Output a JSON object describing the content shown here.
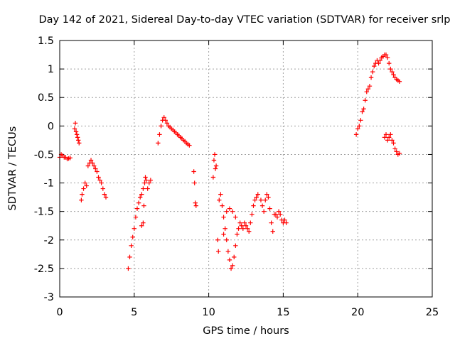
{
  "chart_data": {
    "type": "scatter",
    "title": "Day 142 of 2021, Sidereal Day-to-day VTEC variation (SDTVAR) for receiver srlp",
    "xlabel": "GPS time / hours",
    "ylabel": "SDTVAR / TECUs",
    "xlim": [
      0,
      25
    ],
    "ylim": [
      -3,
      1.5
    ],
    "xticks": [
      0,
      5,
      10,
      15,
      20,
      25
    ],
    "xtick_labels": [
      "0",
      "5",
      "10",
      "15",
      "20",
      "25"
    ],
    "yticks": [
      -3,
      -2.5,
      -2,
      -1.5,
      -1,
      -0.5,
      0,
      0.5,
      1,
      1.5
    ],
    "ytick_labels": [
      "-3",
      "-2.5",
      "-2",
      "-1.5",
      "-1",
      "-0.5",
      "0",
      "0.5",
      "1",
      "1.5"
    ],
    "grid": true,
    "marker": "+",
    "marker_color": "#ff0000",
    "series": [
      {
        "name": "SDTVAR",
        "points": [
          [
            0.0,
            -0.55
          ],
          [
            0.1,
            -0.5
          ],
          [
            0.2,
            -0.52
          ],
          [
            0.3,
            -0.55
          ],
          [
            0.4,
            -0.55
          ],
          [
            0.5,
            -0.58
          ],
          [
            0.6,
            -0.57
          ],
          [
            0.7,
            -0.56
          ],
          [
            1.0,
            -0.05
          ],
          [
            1.05,
            0.05
          ],
          [
            1.1,
            -0.1
          ],
          [
            1.15,
            -0.15
          ],
          [
            1.2,
            -0.2
          ],
          [
            1.25,
            -0.25
          ],
          [
            1.3,
            -0.3
          ],
          [
            1.45,
            -1.3
          ],
          [
            1.5,
            -1.2
          ],
          [
            1.6,
            -1.1
          ],
          [
            1.7,
            -1.0
          ],
          [
            1.8,
            -1.05
          ],
          [
            1.9,
            -0.7
          ],
          [
            2.0,
            -0.65
          ],
          [
            2.1,
            -0.6
          ],
          [
            2.2,
            -0.65
          ],
          [
            2.3,
            -0.7
          ],
          [
            2.4,
            -0.75
          ],
          [
            2.5,
            -0.8
          ],
          [
            2.6,
            -0.9
          ],
          [
            2.7,
            -0.95
          ],
          [
            2.8,
            -1.0
          ],
          [
            2.9,
            -1.1
          ],
          [
            3.0,
            -1.2
          ],
          [
            3.1,
            -1.25
          ],
          [
            4.6,
            -2.5
          ],
          [
            4.7,
            -2.3
          ],
          [
            4.8,
            -2.1
          ],
          [
            4.9,
            -1.95
          ],
          [
            5.0,
            -1.8
          ],
          [
            5.1,
            -1.6
          ],
          [
            5.2,
            -1.45
          ],
          [
            5.3,
            -1.35
          ],
          [
            5.4,
            -1.25
          ],
          [
            5.5,
            -1.2
          ],
          [
            5.6,
            -1.1
          ],
          [
            5.7,
            -1.0
          ],
          [
            5.8,
            -0.95
          ],
          [
            5.9,
            -1.1
          ],
          [
            6.0,
            -1.0
          ],
          [
            6.1,
            -0.95
          ],
          [
            5.5,
            -1.75
          ],
          [
            5.6,
            -1.7
          ],
          [
            5.65,
            -1.4
          ],
          [
            5.75,
            -0.9
          ],
          [
            6.6,
            -0.3
          ],
          [
            6.7,
            -0.15
          ],
          [
            6.8,
            0.0
          ],
          [
            6.9,
            0.1
          ],
          [
            7.0,
            0.15
          ],
          [
            7.1,
            0.1
          ],
          [
            7.2,
            0.05
          ],
          [
            7.3,
            0.0
          ],
          [
            7.4,
            -0.02
          ],
          [
            7.5,
            -0.05
          ],
          [
            7.6,
            -0.07
          ],
          [
            7.7,
            -0.1
          ],
          [
            7.8,
            -0.12
          ],
          [
            7.9,
            -0.15
          ],
          [
            8.0,
            -0.17
          ],
          [
            8.1,
            -0.2
          ],
          [
            8.2,
            -0.22
          ],
          [
            8.3,
            -0.25
          ],
          [
            8.4,
            -0.27
          ],
          [
            8.5,
            -0.3
          ],
          [
            8.6,
            -0.32
          ],
          [
            8.7,
            -0.34
          ],
          [
            9.0,
            -0.8
          ],
          [
            9.05,
            -1.0
          ],
          [
            9.1,
            -1.35
          ],
          [
            9.15,
            -1.4
          ],
          [
            10.3,
            -0.9
          ],
          [
            10.35,
            -0.6
          ],
          [
            10.4,
            -0.5
          ],
          [
            10.45,
            -0.75
          ],
          [
            10.5,
            -0.7
          ],
          [
            10.6,
            -2.0
          ],
          [
            10.65,
            -2.2
          ],
          [
            10.7,
            -1.3
          ],
          [
            10.8,
            -1.2
          ],
          [
            10.9,
            -1.4
          ],
          [
            11.0,
            -1.6
          ],
          [
            11.1,
            -1.8
          ],
          [
            11.2,
            -2.0
          ],
          [
            11.3,
            -2.2
          ],
          [
            11.4,
            -2.35
          ],
          [
            11.5,
            -2.5
          ],
          [
            11.6,
            -2.45
          ],
          [
            11.7,
            -2.3
          ],
          [
            11.8,
            -2.1
          ],
          [
            11.9,
            -1.9
          ],
          [
            12.0,
            -1.8
          ],
          [
            12.1,
            -1.7
          ],
          [
            12.2,
            -1.75
          ],
          [
            12.3,
            -1.8
          ],
          [
            12.4,
            -1.7
          ],
          [
            12.5,
            -1.75
          ],
          [
            12.6,
            -1.8
          ],
          [
            12.7,
            -1.85
          ],
          [
            12.8,
            -1.7
          ],
          [
            12.9,
            -1.55
          ],
          [
            13.0,
            -1.4
          ],
          [
            13.1,
            -1.3
          ],
          [
            13.2,
            -1.25
          ],
          [
            13.3,
            -1.2
          ],
          [
            11.0,
            -1.9
          ],
          [
            11.2,
            -1.5
          ],
          [
            11.4,
            -1.45
          ],
          [
            11.6,
            -1.5
          ],
          [
            11.8,
            -1.6
          ],
          [
            13.5,
            -1.3
          ],
          [
            13.6,
            -1.4
          ],
          [
            13.7,
            -1.5
          ],
          [
            13.8,
            -1.3
          ],
          [
            13.9,
            -1.2
          ],
          [
            14.0,
            -1.25
          ],
          [
            14.1,
            -1.45
          ],
          [
            14.2,
            -1.7
          ],
          [
            14.3,
            -1.85
          ],
          [
            14.4,
            -1.55
          ],
          [
            14.5,
            -1.55
          ],
          [
            14.6,
            -1.6
          ],
          [
            14.7,
            -1.5
          ],
          [
            14.8,
            -1.55
          ],
          [
            14.9,
            -1.65
          ],
          [
            15.0,
            -1.7
          ],
          [
            15.1,
            -1.65
          ],
          [
            15.2,
            -1.7
          ],
          [
            19.9,
            -0.15
          ],
          [
            20.0,
            -0.05
          ],
          [
            20.1,
            0.0
          ],
          [
            20.2,
            0.1
          ],
          [
            20.3,
            0.25
          ],
          [
            20.4,
            0.3
          ],
          [
            20.5,
            0.45
          ],
          [
            20.6,
            0.6
          ],
          [
            20.7,
            0.65
          ],
          [
            20.8,
            0.7
          ],
          [
            20.9,
            0.85
          ],
          [
            21.0,
            0.95
          ],
          [
            21.1,
            1.05
          ],
          [
            21.2,
            1.1
          ],
          [
            21.3,
            1.15
          ],
          [
            21.4,
            1.1
          ],
          [
            21.5,
            1.15
          ],
          [
            21.6,
            1.2
          ],
          [
            21.7,
            1.22
          ],
          [
            21.8,
            1.25
          ],
          [
            21.9,
            1.25
          ],
          [
            22.0,
            1.2
          ],
          [
            22.1,
            1.1
          ],
          [
            22.2,
            1.0
          ],
          [
            22.3,
            0.95
          ],
          [
            22.4,
            0.9
          ],
          [
            22.5,
            0.85
          ],
          [
            22.6,
            0.82
          ],
          [
            22.7,
            0.8
          ],
          [
            22.8,
            0.78
          ],
          [
            21.8,
            -0.2
          ],
          [
            21.9,
            -0.15
          ],
          [
            22.0,
            -0.25
          ],
          [
            22.1,
            -0.2
          ],
          [
            22.2,
            -0.15
          ],
          [
            22.3,
            -0.25
          ],
          [
            22.4,
            -0.3
          ],
          [
            22.5,
            -0.4
          ],
          [
            22.6,
            -0.45
          ],
          [
            22.7,
            -0.5
          ],
          [
            22.8,
            -0.48
          ]
        ]
      }
    ]
  }
}
